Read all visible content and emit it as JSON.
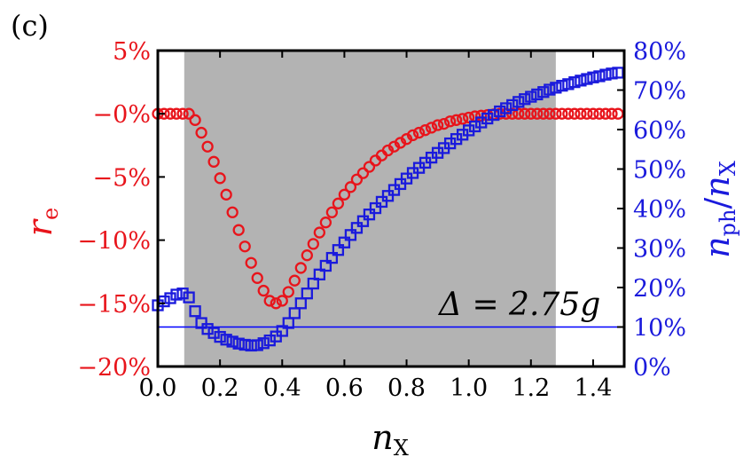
{
  "chart_data": {
    "type": "scatter",
    "panel_label": "(c)",
    "annotation": "Δ = 2.75g",
    "xlabel": "n_X",
    "ylabel_left": "r_e",
    "ylabel_right": "n_ph/n_X",
    "xlim": [
      0,
      1.5
    ],
    "ylim_left": [
      -20,
      5
    ],
    "ylim_right": [
      0,
      80
    ],
    "x_ticks": [
      "0.0",
      "0.2",
      "0.4",
      "0.6",
      "0.8",
      "1.0",
      "1.2",
      "1.4"
    ],
    "y_left_ticks": [
      "5%",
      "−0%",
      "−5%",
      "−10%",
      "−15%",
      "−20%"
    ],
    "y_right_ticks": [
      "80%",
      "70%",
      "60%",
      "50%",
      "40%",
      "30%",
      "20%",
      "10%",
      "0%"
    ],
    "shaded_region": [
      0.085,
      1.28
    ],
    "reference_line_right": 10,
    "colors": {
      "left_series": "#e8141b",
      "right_series": "#1a1adc",
      "shade": "#b3b3b3",
      "reference_line": "#0000ff"
    },
    "series": [
      {
        "axis": "left",
        "marker": "circle",
        "x": [
          0.0,
          0.02,
          0.04,
          0.06,
          0.08,
          0.1,
          0.12,
          0.14,
          0.16,
          0.18,
          0.2,
          0.22,
          0.24,
          0.26,
          0.28,
          0.3,
          0.32,
          0.34,
          0.36,
          0.38,
          0.4,
          0.42,
          0.44,
          0.46,
          0.48,
          0.5,
          0.52,
          0.54,
          0.56,
          0.58,
          0.6,
          0.62,
          0.64,
          0.66,
          0.68,
          0.7,
          0.72,
          0.74,
          0.76,
          0.78,
          0.8,
          0.82,
          0.84,
          0.86,
          0.88,
          0.9,
          0.92,
          0.94,
          0.96,
          0.98,
          1.0,
          1.02,
          1.04,
          1.06,
          1.08,
          1.1,
          1.12,
          1.14,
          1.16,
          1.18,
          1.2,
          1.22,
          1.24,
          1.26,
          1.28,
          1.3,
          1.32,
          1.34,
          1.36,
          1.38,
          1.4,
          1.42,
          1.44,
          1.46,
          1.48
        ],
        "y": [
          0,
          0,
          0,
          0,
          0,
          0,
          -0.5,
          -1.5,
          -2.6,
          -3.8,
          -5.1,
          -6.4,
          -7.8,
          -9.2,
          -10.5,
          -11.8,
          -13.0,
          -14.0,
          -14.8,
          -15.0,
          -14.8,
          -14.1,
          -13.2,
          -12.2,
          -11.2,
          -10.3,
          -9.4,
          -8.6,
          -7.8,
          -7.1,
          -6.4,
          -5.8,
          -5.2,
          -4.7,
          -4.2,
          -3.7,
          -3.3,
          -2.9,
          -2.6,
          -2.3,
          -2.0,
          -1.7,
          -1.5,
          -1.3,
          -1.1,
          -0.9,
          -0.8,
          -0.6,
          -0.5,
          -0.4,
          -0.3,
          -0.2,
          -0.15,
          -0.1,
          -0.05,
          0,
          0,
          0,
          0,
          0,
          0,
          0,
          0,
          0,
          0,
          0,
          0,
          0,
          0,
          0,
          0,
          0,
          0,
          0,
          0
        ]
      },
      {
        "axis": "right",
        "marker": "square",
        "x": [
          0.0,
          0.02,
          0.04,
          0.06,
          0.08,
          0.1,
          0.12,
          0.14,
          0.16,
          0.18,
          0.2,
          0.22,
          0.24,
          0.26,
          0.28,
          0.3,
          0.32,
          0.34,
          0.36,
          0.38,
          0.4,
          0.42,
          0.44,
          0.46,
          0.48,
          0.5,
          0.52,
          0.54,
          0.56,
          0.58,
          0.6,
          0.62,
          0.64,
          0.66,
          0.68,
          0.7,
          0.72,
          0.74,
          0.76,
          0.78,
          0.8,
          0.82,
          0.84,
          0.86,
          0.88,
          0.9,
          0.92,
          0.94,
          0.96,
          0.98,
          1.0,
          1.02,
          1.04,
          1.06,
          1.08,
          1.1,
          1.12,
          1.14,
          1.16,
          1.18,
          1.2,
          1.22,
          1.24,
          1.26,
          1.28,
          1.3,
          1.32,
          1.34,
          1.36,
          1.38,
          1.4,
          1.42,
          1.44,
          1.46,
          1.48
        ],
        "y": [
          15.5,
          16.5,
          17.3,
          18.2,
          18.5,
          17.5,
          14.0,
          11.0,
          9.5,
          8.5,
          7.5,
          6.8,
          6.3,
          5.8,
          5.5,
          5.3,
          5.4,
          5.9,
          6.6,
          7.6,
          9.0,
          11.0,
          13.5,
          16.0,
          18.5,
          21.0,
          23.3,
          25.5,
          27.5,
          29.5,
          31.4,
          33.3,
          35.1,
          36.8,
          38.5,
          40.1,
          41.7,
          43.2,
          44.7,
          46.2,
          47.6,
          49.0,
          50.3,
          51.6,
          52.9,
          54.1,
          55.3,
          56.5,
          57.6,
          58.7,
          59.8,
          60.8,
          61.8,
          62.8,
          63.7,
          64.6,
          65.4,
          66.2,
          67.0,
          67.7,
          68.3,
          68.9,
          69.5,
          70.1,
          70.6,
          71.1,
          71.5,
          72.0,
          72.4,
          72.8,
          73.2,
          73.5,
          73.9,
          74.2,
          74.4
        ]
      }
    ]
  }
}
